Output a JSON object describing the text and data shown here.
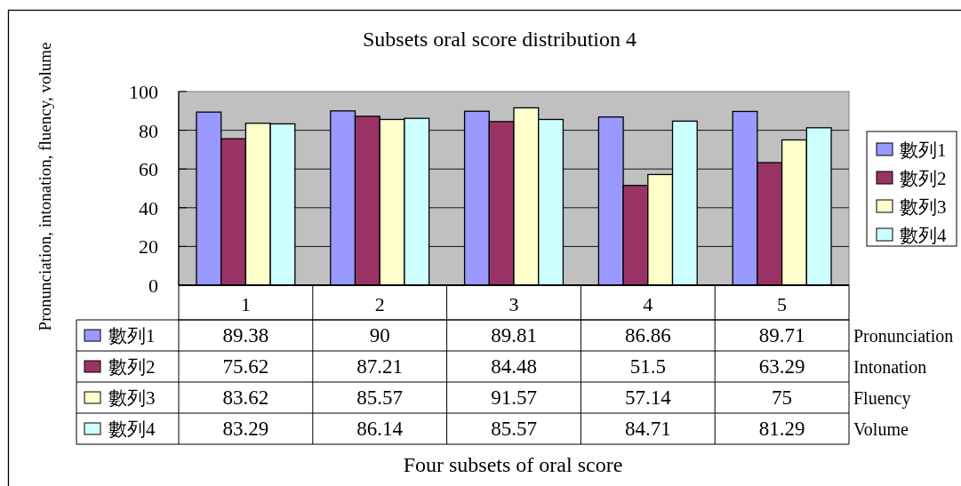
{
  "chart_data": {
    "type": "bar",
    "title": "Subsets oral score distribution 4",
    "ylabel": "Pronunciation, intonation, fluency, volume",
    "categories": [
      "1",
      "2",
      "3",
      "4",
      "5"
    ],
    "series": [
      {
        "name": "數列1",
        "color": "#9999ff",
        "values": [
          89.38,
          90,
          89.81,
          86.86,
          89.71
        ]
      },
      {
        "name": "數列2",
        "color": "#993366",
        "values": [
          75.62,
          87.21,
          84.48,
          51.5,
          63.29
        ]
      },
      {
        "name": "數列3",
        "color": "#ffffcc",
        "values": [
          83.62,
          85.57,
          91.57,
          57.14,
          75
        ]
      },
      {
        "name": "數列4",
        "color": "#ccffff",
        "values": [
          83.29,
          86.14,
          85.57,
          84.71,
          81.29
        ]
      }
    ],
    "ylim": [
      0,
      100
    ],
    "yticks": [
      0,
      20,
      40,
      60,
      80,
      100
    ],
    "grid": "y",
    "legend": "right",
    "data_labels": true,
    "annotations": [
      "Pronunciation",
      "Intonation",
      "Fluency",
      "Volume",
      "Four subsets of oral score"
    ]
  }
}
